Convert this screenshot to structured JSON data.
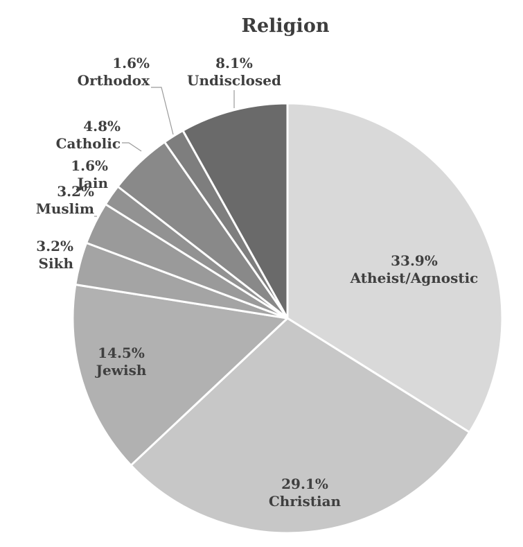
{
  "chart_data": {
    "type": "pie",
    "title": "Religion",
    "start_angle_deg": 0,
    "direction": "clockwise",
    "slices": [
      {
        "label": "Atheist/Agnostic",
        "value": 33.9,
        "value_label": "33.9%",
        "color": "#d9d9d9"
      },
      {
        "label": "Christian",
        "value": 29.1,
        "value_label": "29.1%",
        "color": "#c7c7c7"
      },
      {
        "label": "Jewish",
        "value": 14.5,
        "value_label": "14.5%",
        "color": "#b1b1b1"
      },
      {
        "label": "Sikh",
        "value": 3.2,
        "value_label": "3.2%",
        "color": "#a4a4a4"
      },
      {
        "label": "Muslim",
        "value": 3.2,
        "value_label": "3.2%",
        "color": "#9a9a9a"
      },
      {
        "label": "Jain",
        "value": 1.6,
        "value_label": "1.6%",
        "color": "#929292"
      },
      {
        "label": "Catholic",
        "value": 4.8,
        "value_label": "4.8%",
        "color": "#898989"
      },
      {
        "label": "Orthodox",
        "value": 1.6,
        "value_label": "1.6%",
        "color": "#7e7e7e"
      },
      {
        "label": "Undisclosed",
        "value": 8.1,
        "value_label": "8.1%",
        "color": "#6a6a6a"
      }
    ]
  }
}
